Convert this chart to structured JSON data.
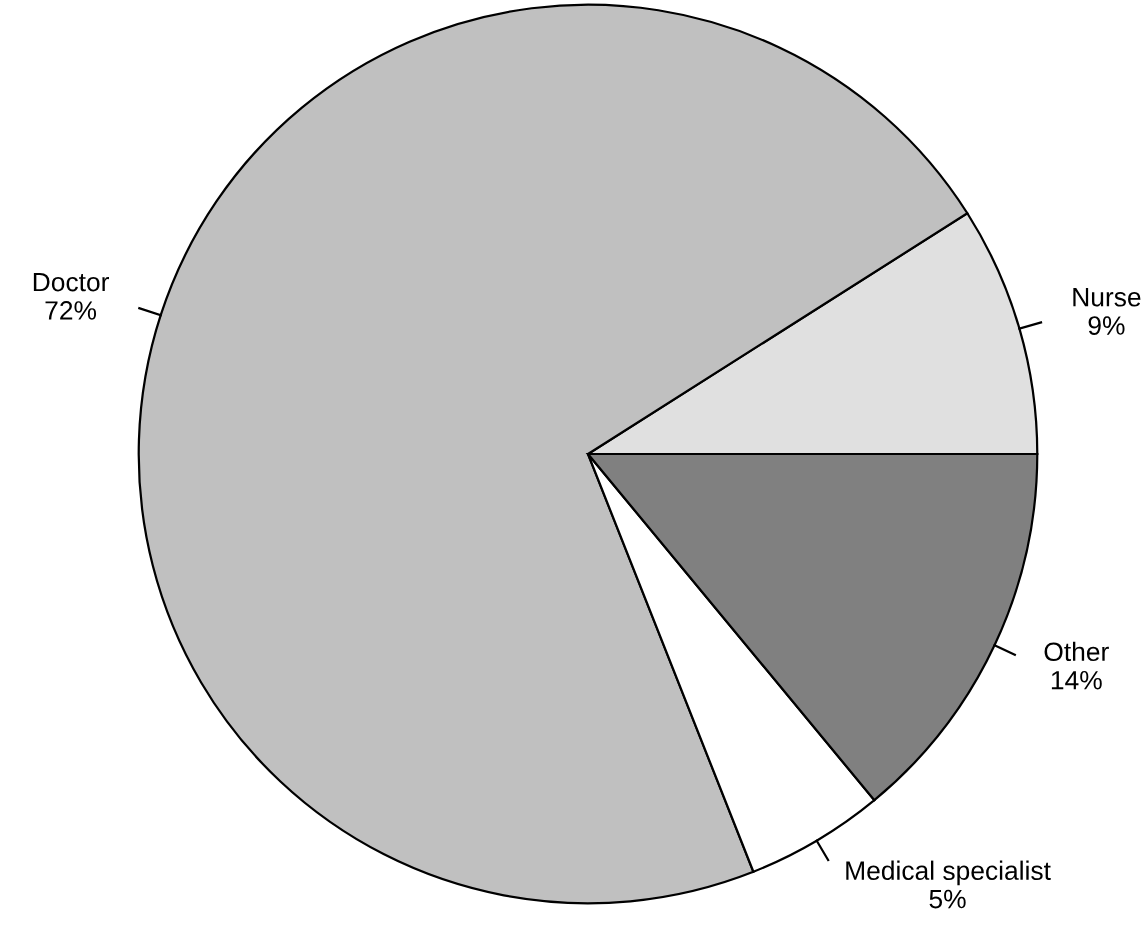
{
  "chart_data": {
    "type": "pie",
    "categories": [
      "Nurse",
      "Doctor",
      "Medical specialist",
      "Other"
    ],
    "values": [
      9,
      72,
      5,
      14
    ],
    "value_labels": [
      "9%",
      "72%",
      "5%",
      "14%"
    ],
    "colors": [
      "#e0e0e0",
      "#c0c0c0",
      "#ffffff",
      "#808080"
    ]
  }
}
